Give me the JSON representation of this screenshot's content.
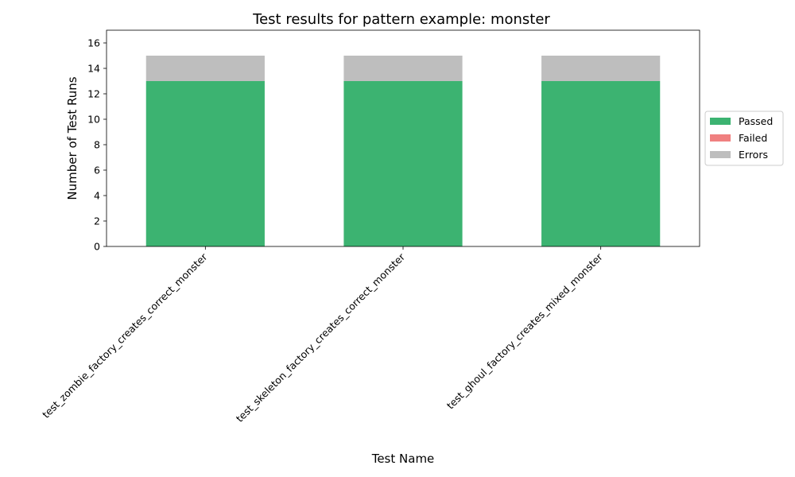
{
  "chart_data": {
    "type": "bar",
    "stacked": true,
    "title": "Test results for pattern example: monster",
    "xlabel": "Test Name",
    "ylabel": "Number of Test Runs",
    "categories": [
      "test_zombie_factory_creates_correct_monster",
      "test_skeleton_factory_creates_correct_monster",
      "test_ghoul_factory_creates_mixed_monster"
    ],
    "series": [
      {
        "name": "Passed",
        "values": [
          13,
          13,
          13
        ],
        "color": "#3cb371"
      },
      {
        "name": "Failed",
        "values": [
          0,
          0,
          0
        ],
        "color": "#f08080"
      },
      {
        "name": "Errors",
        "values": [
          2,
          2,
          2
        ],
        "color": "#bebebe"
      }
    ],
    "ylim": [
      0,
      17
    ],
    "yticks": [
      0,
      2,
      4,
      6,
      8,
      10,
      12,
      14,
      16
    ],
    "grid": false,
    "legend_position": "right"
  }
}
